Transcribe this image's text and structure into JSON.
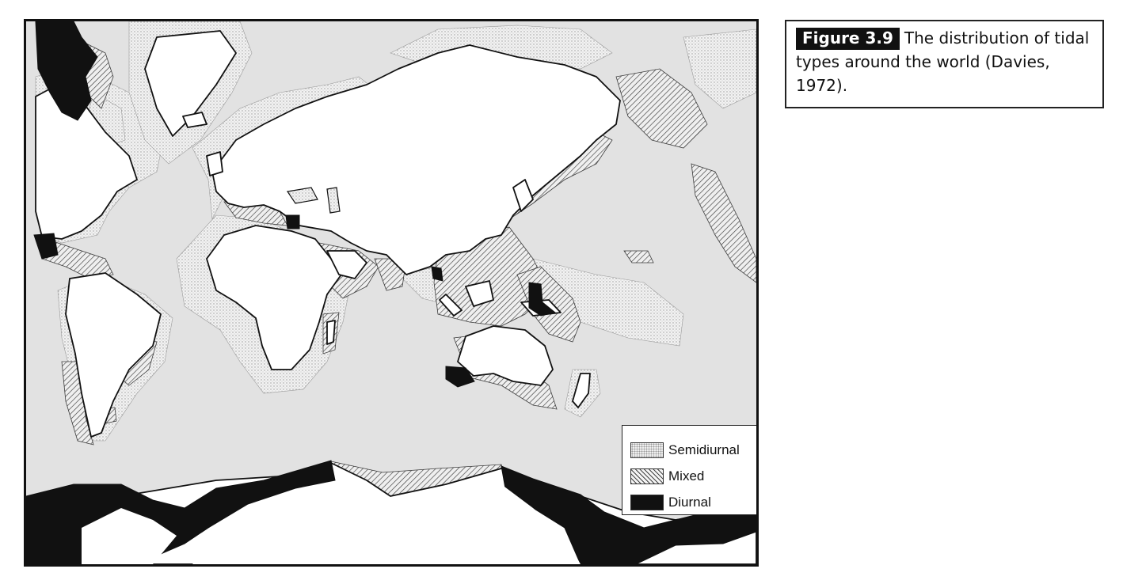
{
  "caption": {
    "label": "Figure 3.9",
    "text": "The distribution of tidal types around the world (Davies, 1972)."
  },
  "legend": {
    "items": [
      {
        "label": "Semidiurnal",
        "pattern": "semidiurnal"
      },
      {
        "label": "Mixed",
        "pattern": "mixed"
      },
      {
        "label": "Diurnal",
        "pattern": "diurnal"
      }
    ]
  },
  "colors": {
    "ocean": "#e2e2e2",
    "land": "#ffffff",
    "diurnal": "#111111",
    "outline": "#111111"
  }
}
